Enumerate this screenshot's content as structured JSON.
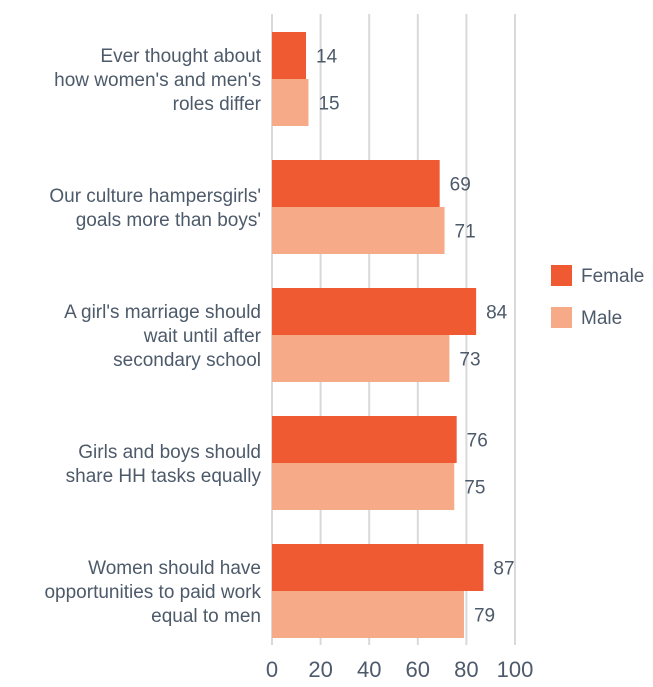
{
  "chart_data": {
    "type": "bar",
    "orientation": "horizontal",
    "categories": [
      [
        "Ever thought about",
        "how women's and men's",
        "roles differ"
      ],
      [
        "Our culture hampersgirls'",
        "goals more than boys'"
      ],
      [
        "A girl's marriage should",
        "wait until after",
        "secondary school"
      ],
      [
        "Girls and boys should",
        "share HH tasks equally"
      ],
      [
        "Women should have",
        "opportunities to paid work",
        "equal to men"
      ]
    ],
    "series": [
      {
        "name": "Female",
        "color": "#f05a33",
        "values": [
          14,
          69,
          84,
          76,
          87
        ]
      },
      {
        "name": "Male",
        "color": "#f7aa88",
        "values": [
          15,
          71,
          73,
          75,
          79
        ]
      }
    ],
    "xticks": [
      "0",
      "20",
      "40",
      "60",
      "80",
      "100"
    ],
    "xlim": [
      0,
      100
    ],
    "grid": true,
    "legend_position": "right"
  }
}
